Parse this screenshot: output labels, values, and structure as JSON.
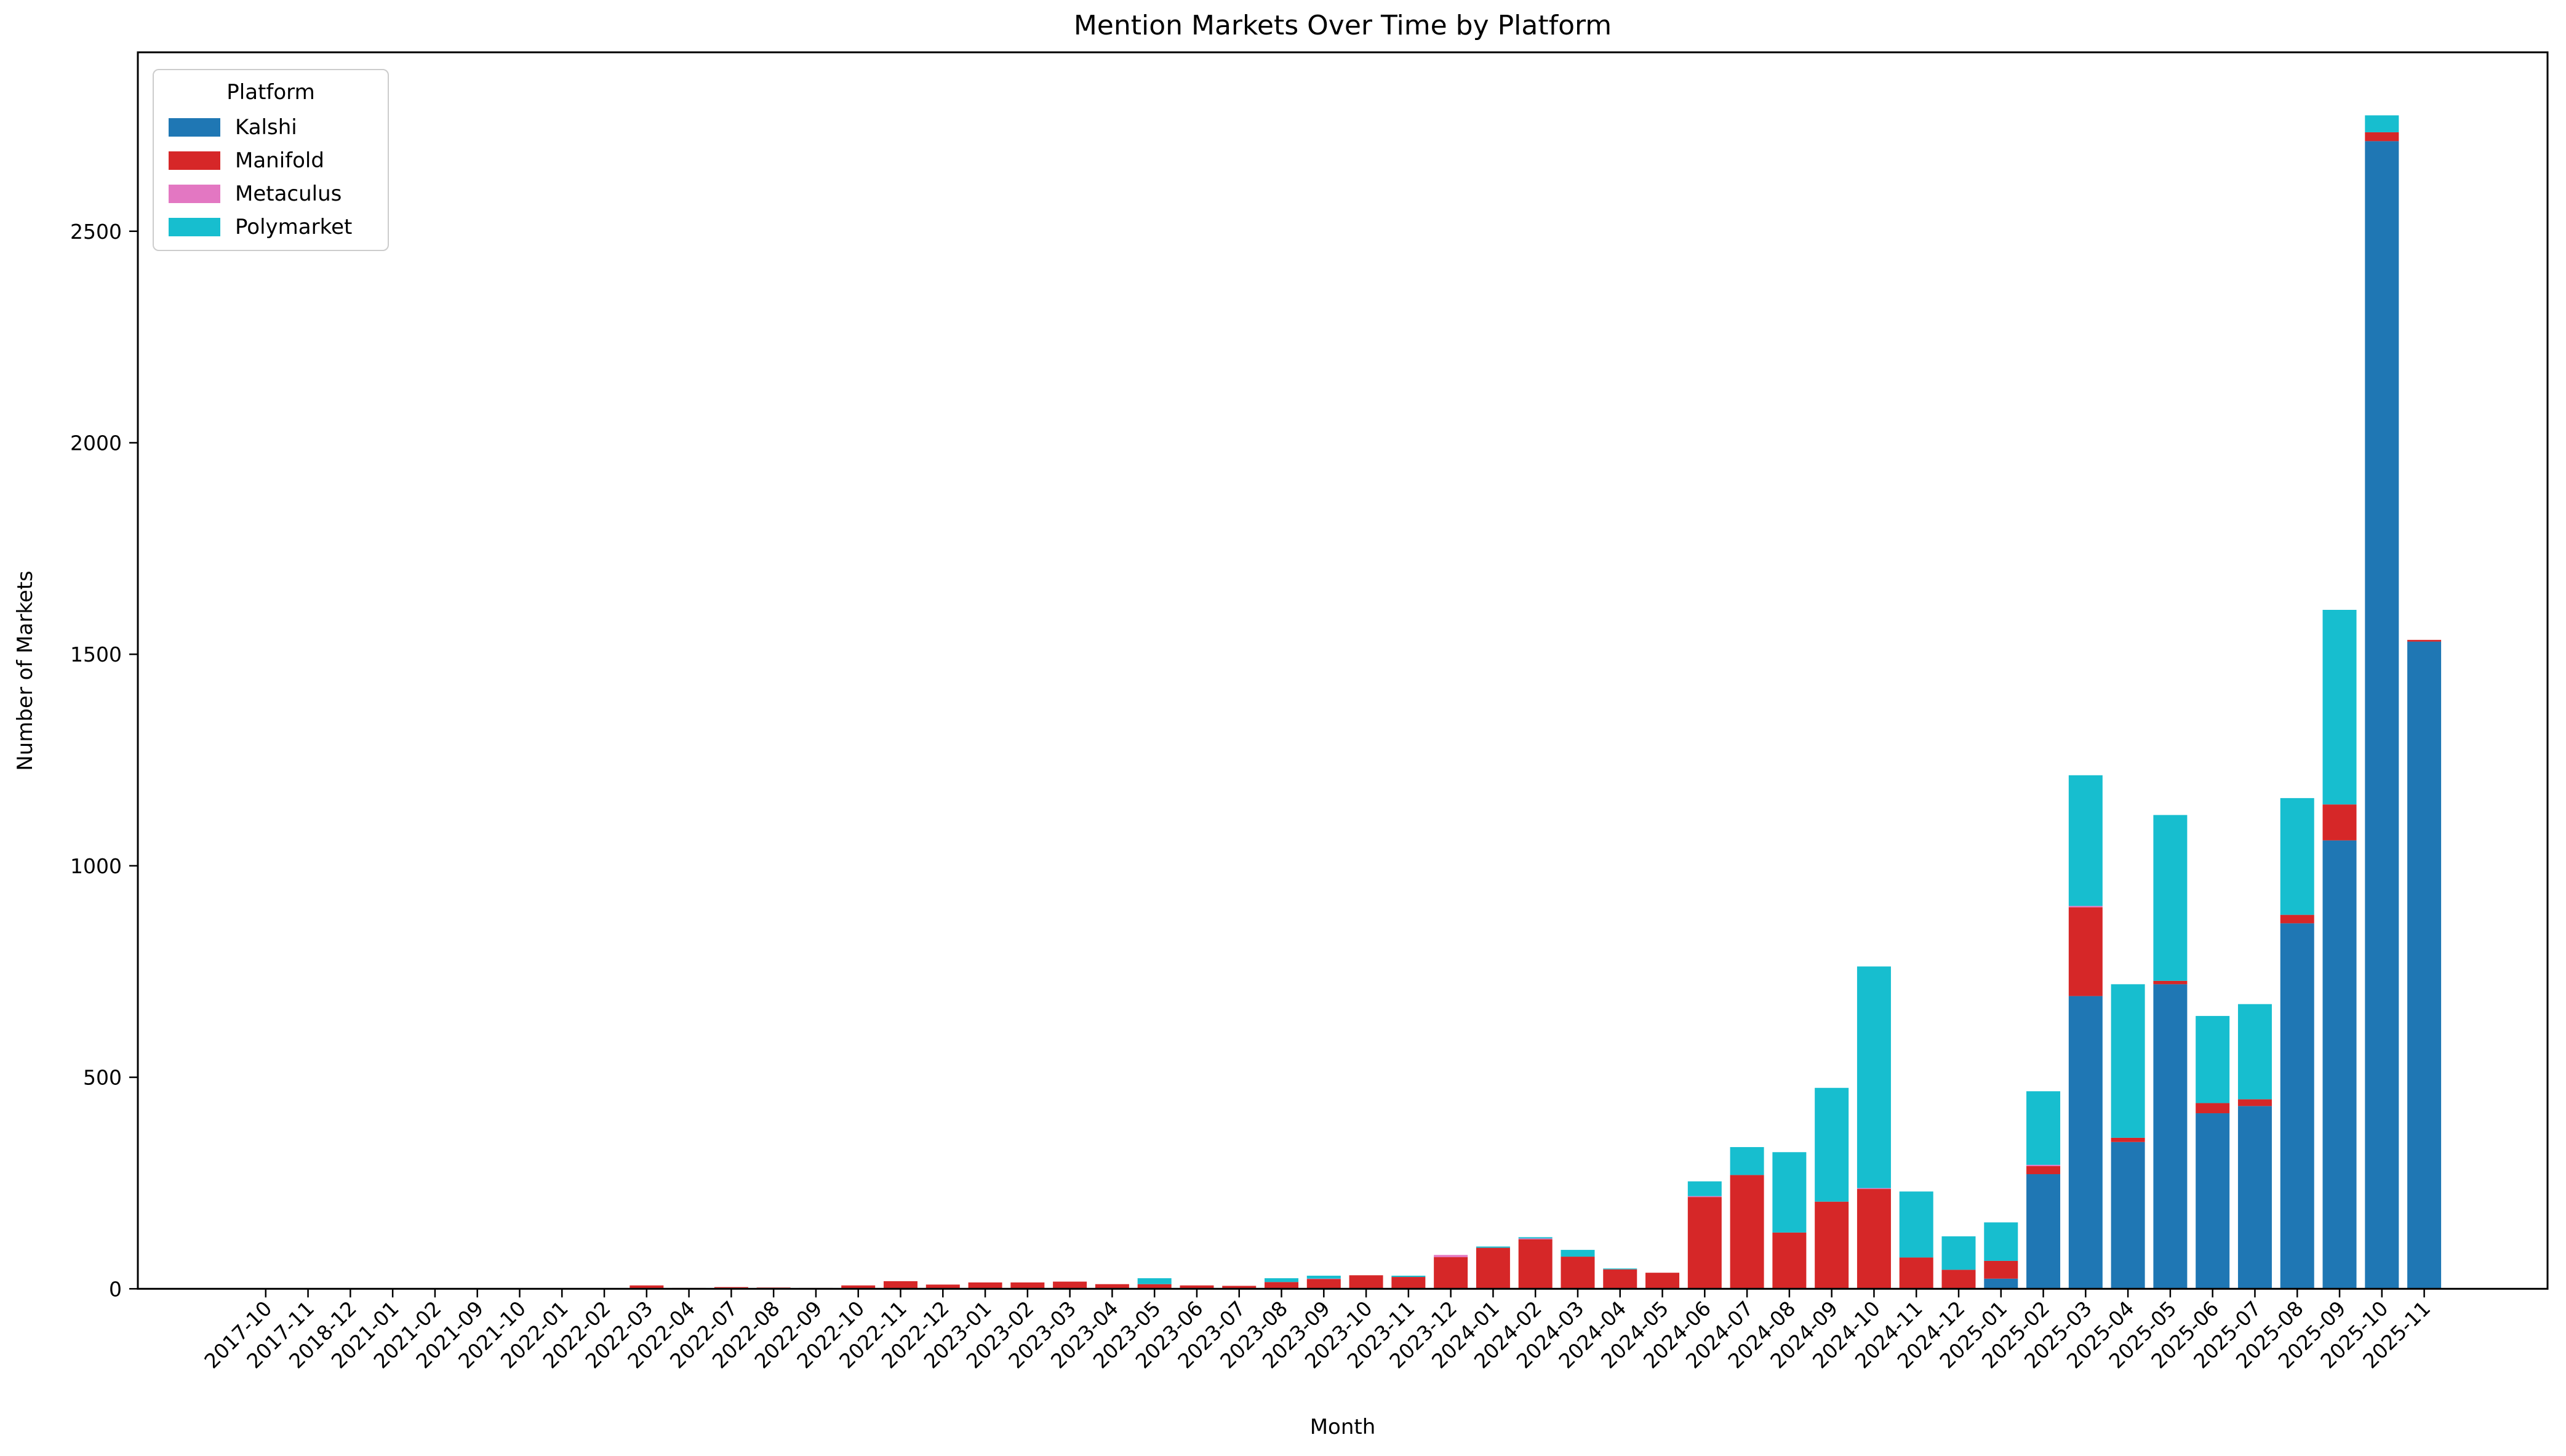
{
  "figure": {
    "background_color": "#ffffff",
    "text_color": "#000000"
  },
  "chart_data": {
    "type": "bar",
    "stacked": true,
    "title": "Mention Markets Over Time by Platform",
    "xlabel": "Month",
    "ylabel": "Number of Markets",
    "legend_title": "Platform",
    "legend_position": "upper-left",
    "grid": false,
    "ylim": [
      0,
      2923
    ],
    "yticks": [
      0,
      500,
      1000,
      1500,
      2000,
      2500
    ],
    "x_tick_rotation": 45,
    "categories": [
      "2017-10",
      "2017-11",
      "2018-12",
      "2021-01",
      "2021-02",
      "2021-09",
      "2021-10",
      "2022-01",
      "2022-02",
      "2022-03",
      "2022-04",
      "2022-07",
      "2022-08",
      "2022-09",
      "2022-10",
      "2022-11",
      "2022-12",
      "2023-01",
      "2023-02",
      "2023-03",
      "2023-04",
      "2023-05",
      "2023-06",
      "2023-07",
      "2023-08",
      "2023-09",
      "2023-10",
      "2023-11",
      "2023-12",
      "2024-01",
      "2024-02",
      "2024-03",
      "2024-04",
      "2024-05",
      "2024-06",
      "2024-07",
      "2024-08",
      "2024-09",
      "2024-10",
      "2024-11",
      "2024-12",
      "2025-01",
      "2025-02",
      "2025-03",
      "2025-04",
      "2025-05",
      "2025-06",
      "2025-07",
      "2025-08",
      "2025-09",
      "2025-10",
      "2025-11"
    ],
    "series": [
      {
        "name": "Kalshi",
        "color": "#1f77b4",
        "values": [
          0,
          0,
          0,
          0,
          0,
          0,
          0,
          0,
          0,
          0,
          0,
          0,
          0,
          0,
          0,
          0,
          0,
          0,
          0,
          0,
          0,
          0,
          0,
          0,
          0,
          0,
          0,
          0,
          0,
          0,
          0,
          0,
          0,
          0,
          0,
          0,
          0,
          0,
          0,
          0,
          0,
          24,
          271,
          692,
          347,
          720,
          415,
          432,
          864,
          1060,
          2713,
          1530
        ]
      },
      {
        "name": "Manifold",
        "color": "#d62728",
        "values": [
          1,
          1,
          0,
          1,
          1,
          1,
          1,
          1,
          1,
          8,
          2,
          4,
          3,
          2,
          8,
          18,
          10,
          15,
          15,
          17,
          11,
          11,
          8,
          7,
          16,
          23,
          32,
          28,
          75,
          97,
          117,
          76,
          46,
          38,
          217,
          269,
          133,
          206,
          236,
          74,
          45,
          42,
          19,
          210,
          10,
          8,
          24,
          16,
          20,
          85,
          21,
          4
        ]
      },
      {
        "name": "Metaculus",
        "color": "#e377c2",
        "values": [
          0,
          0,
          1,
          0,
          0,
          0,
          0,
          0,
          0,
          0,
          0,
          0,
          0,
          0,
          0,
          0,
          0,
          0,
          0,
          0,
          0,
          0,
          0,
          0,
          0,
          1,
          0,
          0,
          5,
          0,
          2,
          0,
          0,
          0,
          2,
          0,
          0,
          0,
          2,
          0,
          0,
          0,
          3,
          3,
          0,
          0,
          0,
          0,
          0,
          0,
          0,
          0
        ]
      },
      {
        "name": "Polymarket",
        "color": "#17becf",
        "values": [
          0,
          0,
          0,
          0,
          0,
          0,
          0,
          0,
          0,
          0,
          0,
          0,
          0,
          0,
          0,
          0,
          0,
          0,
          0,
          0,
          0,
          14,
          0,
          0,
          9,
          7,
          0,
          3,
          0,
          3,
          3,
          16,
          2,
          0,
          35,
          66,
          190,
          269,
          524,
          156,
          79,
          91,
          174,
          309,
          363,
          392,
          206,
          225,
          276,
          460,
          40,
          0
        ]
      }
    ]
  }
}
